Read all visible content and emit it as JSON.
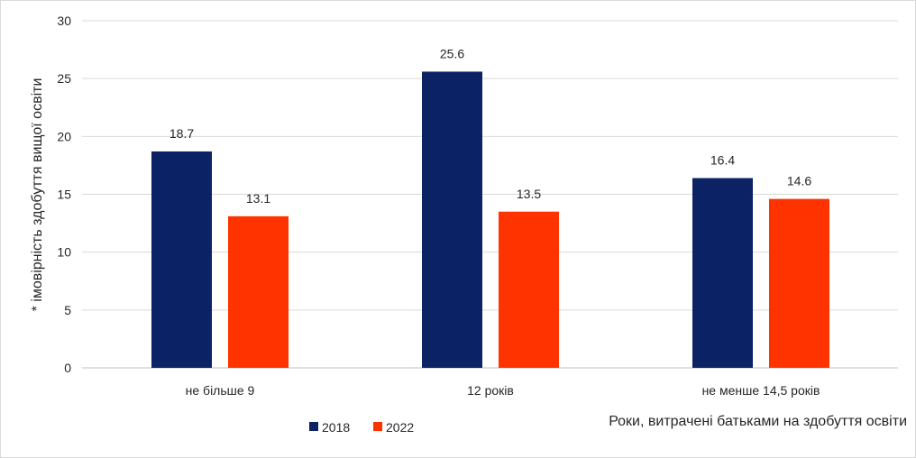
{
  "chart_data": {
    "type": "bar",
    "categories": [
      "не більше 9",
      "12 років",
      "не менше 14,5 років"
    ],
    "series": [
      {
        "name": "2018",
        "values": [
          18.7,
          25.6,
          16.4
        ],
        "color": "#0b2265"
      },
      {
        "name": "2022",
        "values": [
          13.1,
          13.5,
          14.6
        ],
        "color": "#ff3300"
      }
    ],
    "data_labels": [
      [
        "18.7",
        "25.6",
        "16.4"
      ],
      [
        "13.1",
        "13.5",
        "14.6"
      ]
    ],
    "y_ticks": [
      "0",
      "5",
      "10",
      "15",
      "20",
      "25",
      "30"
    ],
    "y_tick_values": [
      0,
      5,
      10,
      15,
      20,
      25,
      30
    ],
    "ylim": [
      0,
      30
    ],
    "xlabel": "Роки, витрачені батьками на здобуття освіти",
    "ylabel": "* імовірність здобуття вищої освіти",
    "grid": true,
    "legend": "bottom",
    "gridline_color": "#d9d9d9",
    "axis_color": "#bfbfbf"
  }
}
